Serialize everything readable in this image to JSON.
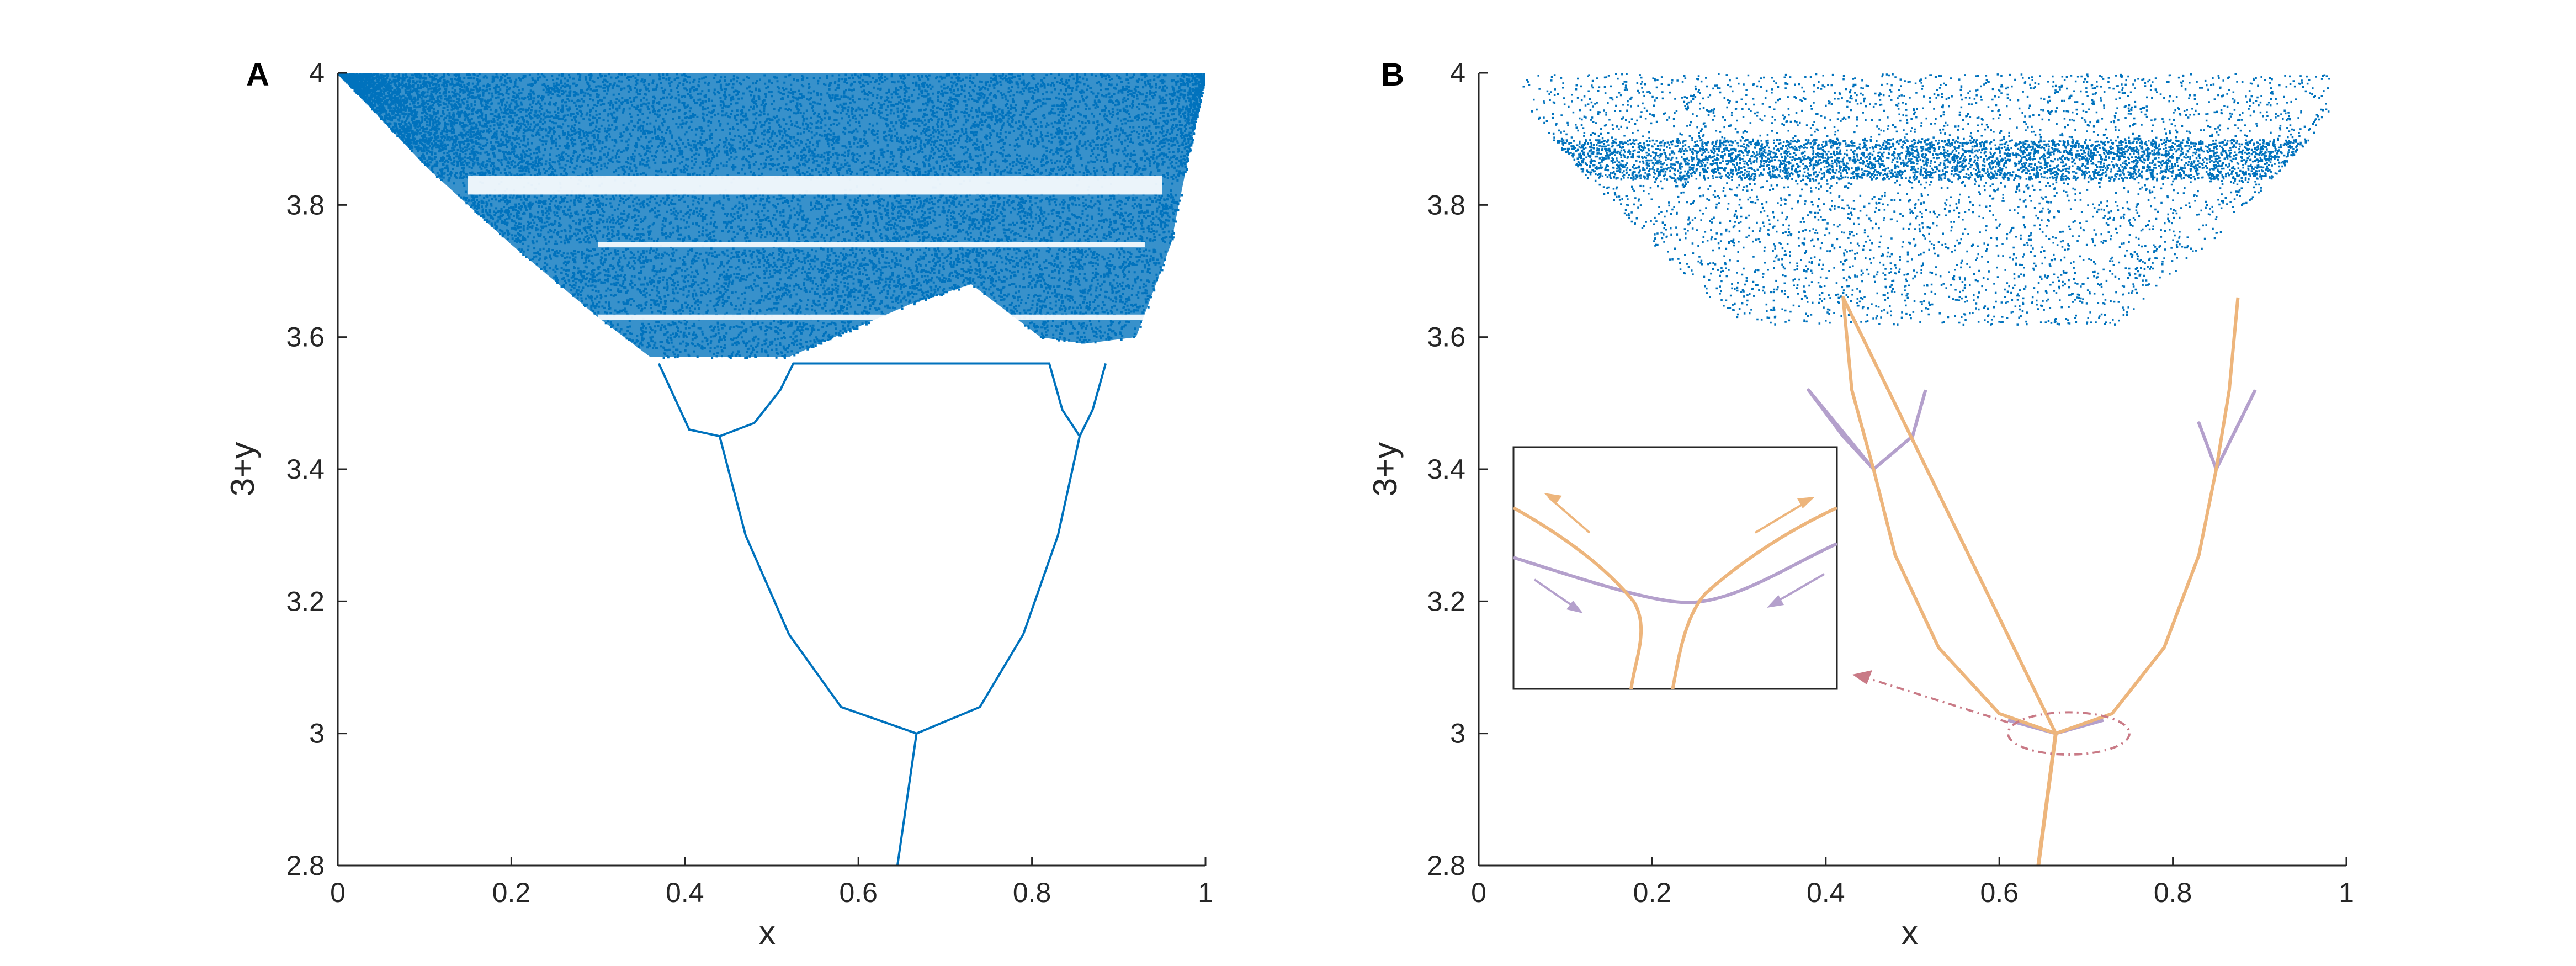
{
  "chart_data": [
    {
      "type": "scatter",
      "panel_label": "A",
      "xlabel": "x",
      "ylabel": "3+y",
      "xlim": [
        0,
        1
      ],
      "ylim": [
        2.8,
        4
      ],
      "xticks": [
        "0",
        "0.2",
        "0.4",
        "0.6",
        "0.8",
        "1"
      ],
      "yticks": [
        "2.8",
        "3",
        "3.2",
        "3.4",
        "3.6",
        "3.8",
        "4"
      ],
      "grid": false,
      "colors": {
        "points": "#0072BD"
      },
      "series": [
        {
          "kind": "stem",
          "points": [
            [
              0.645,
              2.8
            ],
            [
              0.667,
              3.0
            ]
          ]
        },
        {
          "kind": "period-2 branch",
          "points": [
            [
              0.44,
              3.45
            ],
            [
              0.47,
              3.3
            ],
            [
              0.52,
              3.15
            ],
            [
              0.58,
              3.04
            ],
            [
              0.667,
              3.0
            ],
            [
              0.74,
              3.04
            ],
            [
              0.79,
              3.15
            ],
            [
              0.83,
              3.3
            ],
            [
              0.855,
              3.45
            ]
          ]
        },
        {
          "kind": "period-4 branches",
          "points": [
            [
              0.37,
              3.56
            ],
            [
              0.405,
              3.46
            ],
            [
              0.44,
              3.45
            ],
            [
              0.48,
              3.47
            ],
            [
              0.51,
              3.52
            ],
            [
              0.525,
              3.56
            ],
            [
              0.82,
              3.56
            ],
            [
              0.835,
              3.49
            ],
            [
              0.855,
              3.45
            ],
            [
              0.87,
              3.49
            ],
            [
              0.885,
              3.56
            ]
          ]
        },
        {
          "kind": "chaotic region boundary",
          "points": [
            [
              0.0,
              4.0
            ],
            [
              0.1,
              3.86
            ],
            [
              0.2,
              3.74
            ],
            [
              0.3,
              3.63
            ],
            [
              0.36,
              3.57
            ],
            [
              0.52,
              3.57
            ],
            [
              0.66,
              3.65
            ],
            [
              0.73,
              3.68
            ],
            [
              0.81,
              3.6
            ],
            [
              0.86,
              3.59
            ],
            [
              0.92,
              3.6
            ],
            [
              0.96,
              3.74
            ],
            [
              1.0,
              4.0
            ]
          ]
        },
        {
          "kind": "periodic windows (gaps)",
          "values": [
            3.83,
            3.74,
            3.63
          ]
        }
      ]
    },
    {
      "type": "scatter",
      "panel_label": "B",
      "xlabel": "x",
      "ylabel": "3+y",
      "xlim": [
        0,
        1
      ],
      "ylim": [
        2.8,
        4
      ],
      "xticks": [
        "0",
        "0.2",
        "0.4",
        "0.6",
        "0.8",
        "1"
      ],
      "yticks": [
        "2.8",
        "3",
        "3.2",
        "3.4",
        "3.6",
        "3.8",
        "4"
      ],
      "grid": false,
      "colors": {
        "points": "#0072BD",
        "orange_branch": "#EDB57C",
        "purple_branch": "#B4A0CC",
        "highlight": "#C97A86"
      },
      "series": [
        {
          "kind": "orange stem",
          "points": [
            [
              0.645,
              2.8
            ],
            [
              0.665,
              3.0
            ]
          ]
        },
        {
          "kind": "orange branch",
          "points": [
            [
              0.665,
              3.0
            ],
            [
              0.6,
              3.03
            ],
            [
              0.53,
              3.13
            ],
            [
              0.48,
              3.27
            ],
            [
              0.455,
              3.4
            ],
            [
              0.43,
              3.52
            ],
            [
              0.42,
              3.66
            ],
            [
              0.665,
              3.0
            ],
            [
              0.73,
              3.03
            ],
            [
              0.79,
              3.13
            ],
            [
              0.83,
              3.27
            ],
            [
              0.85,
              3.4
            ],
            [
              0.865,
              3.52
            ],
            [
              0.875,
              3.66
            ]
          ]
        },
        {
          "kind": "purple branch",
          "points": [
            [
              0.61,
              3.02
            ],
            [
              0.665,
              3.0
            ],
            [
              0.72,
              3.02
            ],
            [
              0.455,
              3.4
            ],
            [
              0.42,
              3.45
            ],
            [
              0.38,
              3.52
            ],
            [
              0.455,
              3.4
            ],
            [
              0.5,
              3.45
            ],
            [
              0.515,
              3.52
            ],
            [
              0.85,
              3.4
            ],
            [
              0.83,
              3.47
            ],
            [
              0.85,
              3.4
            ],
            [
              0.88,
              3.48
            ],
            [
              0.895,
              3.52
            ]
          ]
        },
        {
          "kind": "highlight ellipse",
          "center": [
            0.68,
            3.0
          ],
          "radii": [
            0.07,
            0.032
          ]
        }
      ]
    }
  ]
}
